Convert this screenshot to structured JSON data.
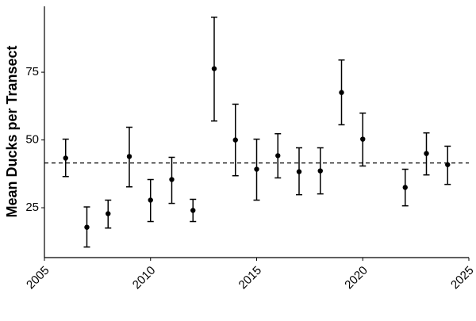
{
  "chart_data": {
    "type": "errorbar",
    "y_label": "Mean Ducks per Transect",
    "x": [
      2006,
      2007,
      2008,
      2009,
      2010,
      2011,
      2012,
      2013,
      2014,
      2015,
      2016,
      2017,
      2018,
      2019,
      2020,
      2022,
      2023,
      2024
    ],
    "values": [
      43.3,
      17.8,
      22.8,
      43.9,
      27.8,
      35.4,
      24.0,
      76.3,
      50.0,
      39.2,
      44.2,
      38.3,
      38.6,
      67.5,
      50.3,
      32.5,
      45.0,
      40.9
    ],
    "lower": [
      36.5,
      10.5,
      17.5,
      32.7,
      19.9,
      26.6,
      19.9,
      57.0,
      36.8,
      27.8,
      36.0,
      29.8,
      30.1,
      55.6,
      40.4,
      25.7,
      37.1,
      33.6
    ],
    "upper": [
      50.3,
      25.3,
      27.8,
      54.7,
      35.4,
      43.6,
      28.1,
      95.3,
      63.2,
      50.3,
      52.3,
      47.1,
      47.1,
      79.5,
      59.9,
      39.2,
      52.6,
      47.7
    ],
    "reference_line": 41.5,
    "color": "#000000",
    "xlim": [
      2005,
      2025
    ],
    "xticks": [
      2005,
      2010,
      2015,
      2020,
      2025
    ],
    "ylim": [
      6.6,
      99.3
    ],
    "yticks": [
      25,
      50,
      75
    ],
    "grid": false
  }
}
